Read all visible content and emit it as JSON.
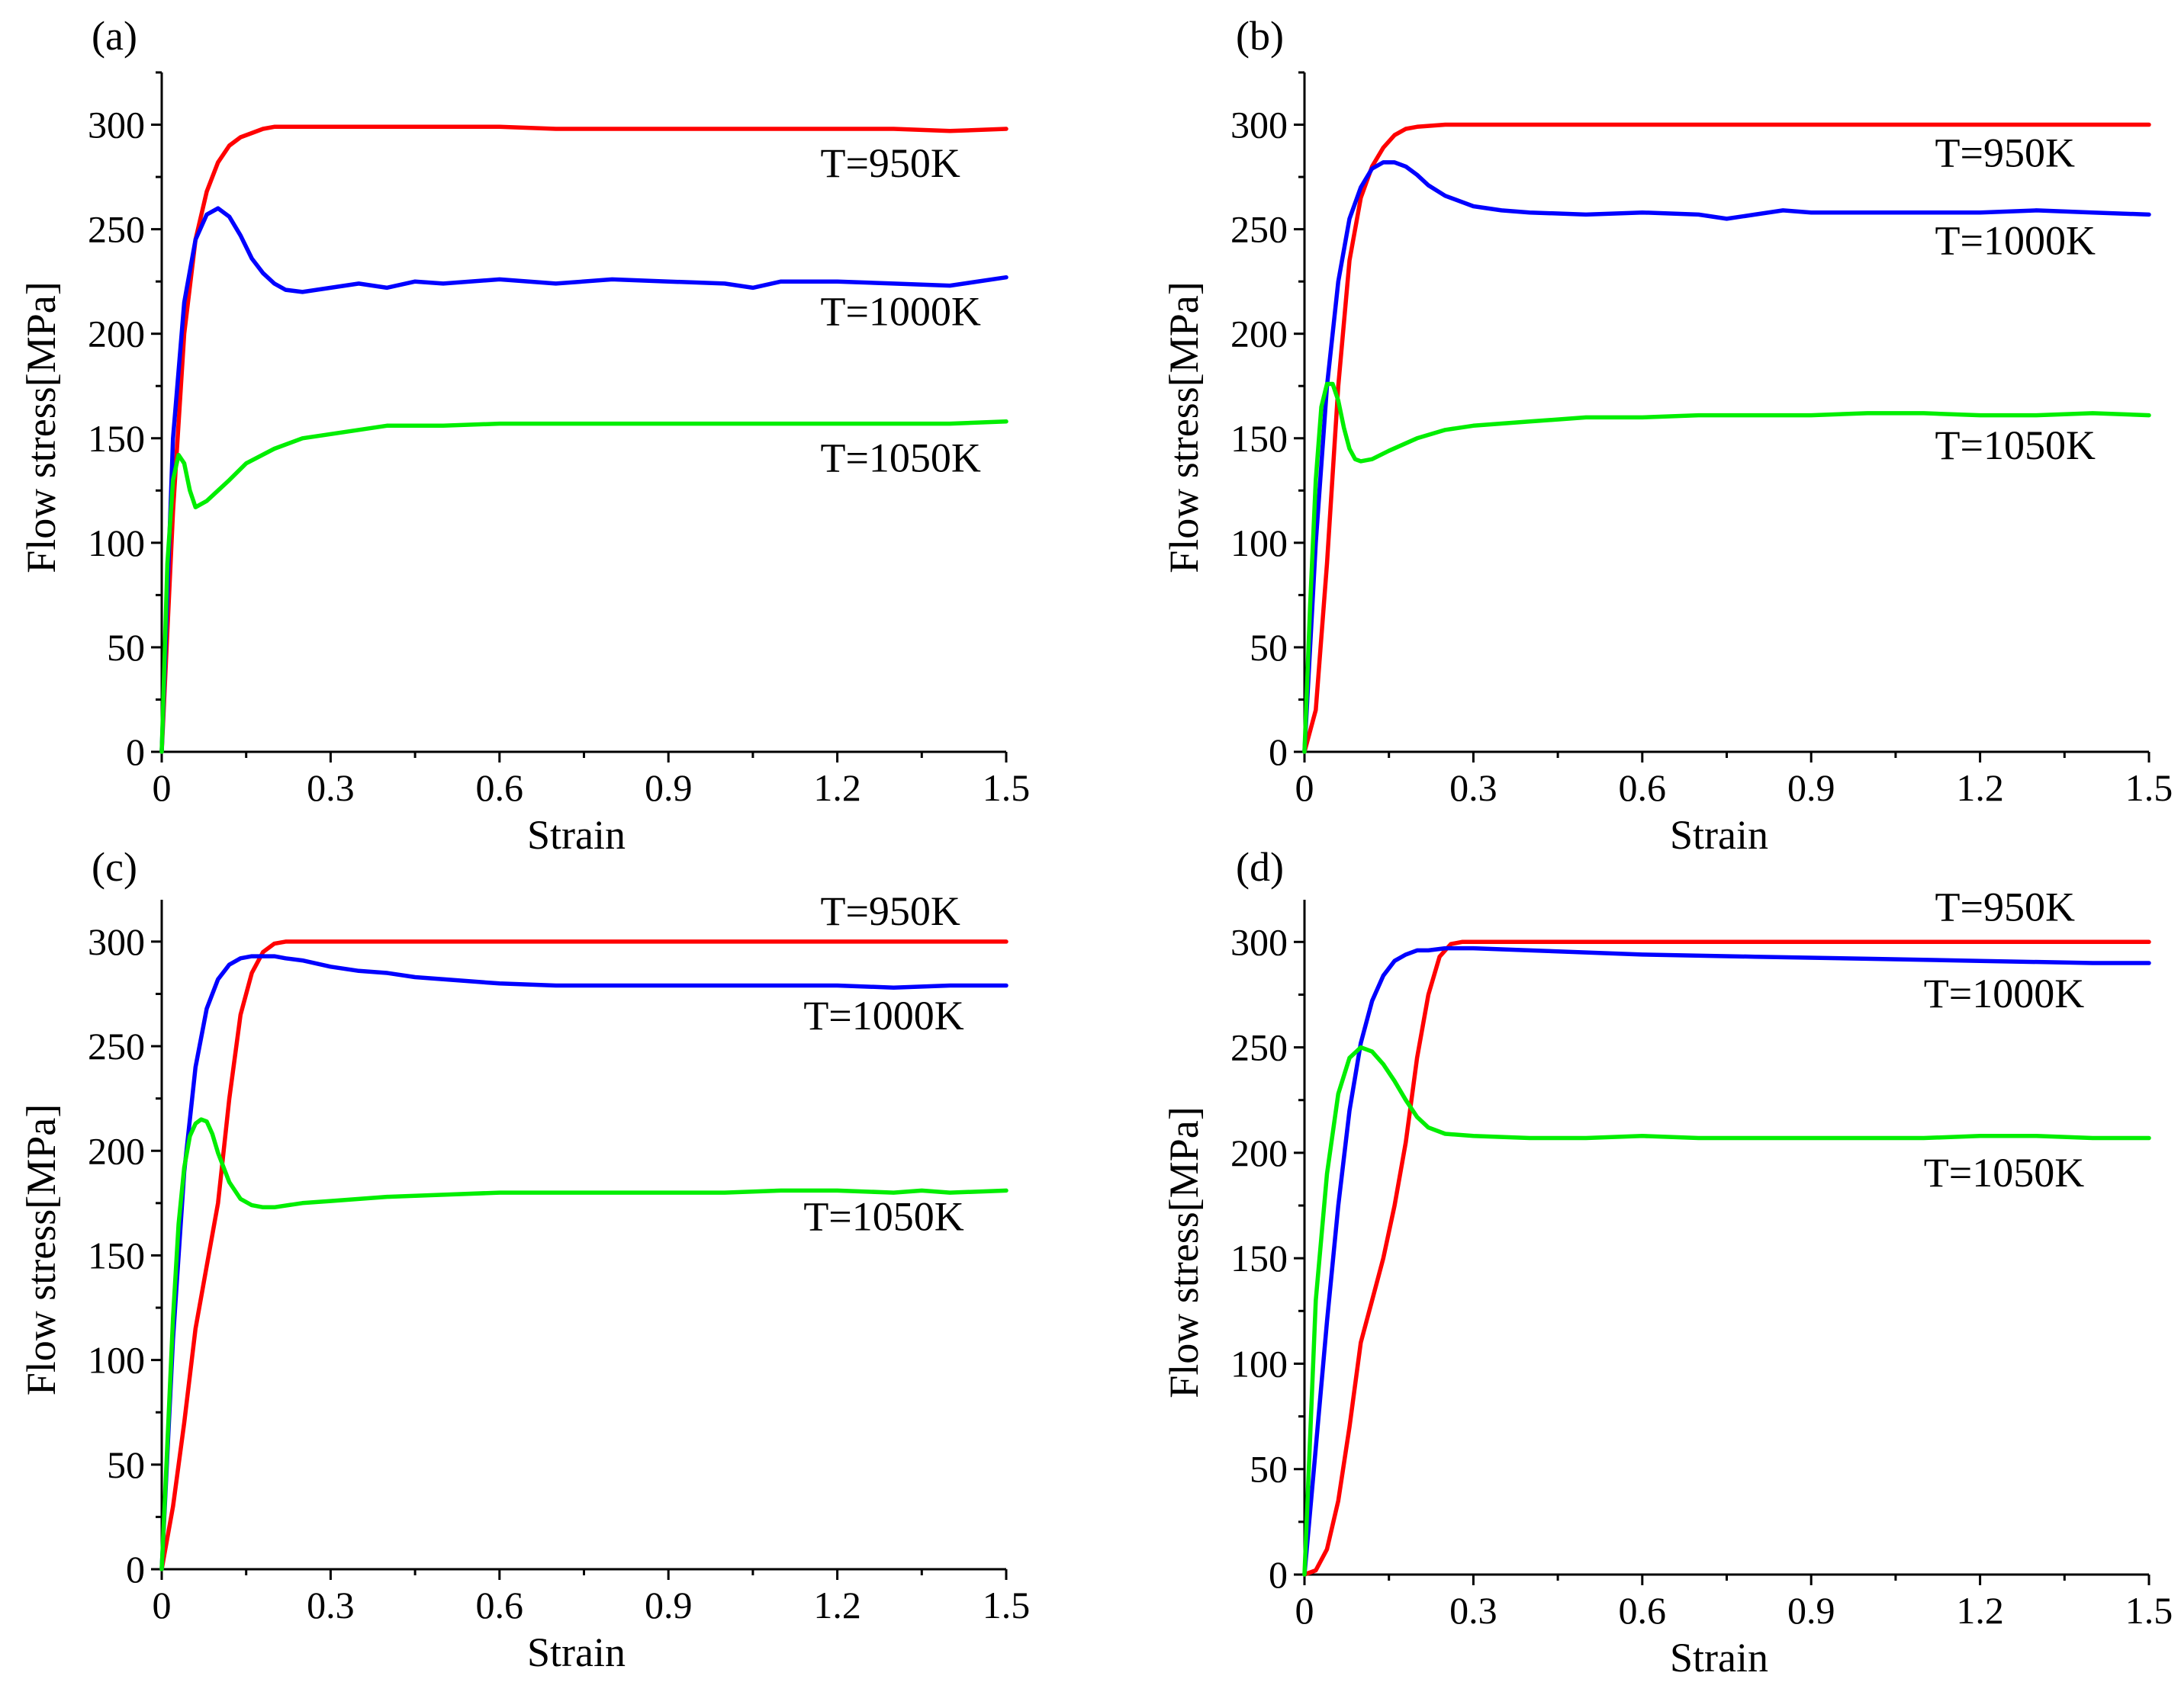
{
  "colors": {
    "T950": "#ff0000",
    "T1000": "#0000ff",
    "T1050": "#00ee00"
  },
  "chart_data": [
    {
      "type": "line",
      "panel": "(a)",
      "xlabel": "Strain",
      "ylabel": "Flow stress[MPa]",
      "xlim": [
        0,
        1.5
      ],
      "ylim": [
        0,
        325
      ],
      "xticks": [
        0,
        0.3,
        0.6,
        0.9,
        1.2,
        1.5
      ],
      "xtick_labels": [
        "0",
        "0.3",
        "0.6",
        "0.9",
        "1.2",
        "1.5"
      ],
      "yticks": [
        0,
        50,
        100,
        150,
        200,
        250,
        300
      ],
      "ytick_labels": [
        "0",
        "50",
        "100",
        "150",
        "200",
        "250",
        "300"
      ],
      "series": [
        {
          "name": "T=950K",
          "color": "#ff0000",
          "x": [
            0,
            0.02,
            0.04,
            0.06,
            0.08,
            0.1,
            0.12,
            0.14,
            0.16,
            0.18,
            0.2,
            0.25,
            0.3,
            0.4,
            0.5,
            0.6,
            0.7,
            0.8,
            0.9,
            1.0,
            1.1,
            1.2,
            1.3,
            1.4,
            1.5
          ],
          "y": [
            0,
            115,
            200,
            245,
            268,
            282,
            290,
            294,
            296,
            298,
            299,
            299,
            299,
            299,
            299,
            299,
            298,
            298,
            298,
            298,
            298,
            298,
            298,
            297,
            298
          ]
        },
        {
          "name": "T=1000K",
          "color": "#0000ff",
          "x": [
            0,
            0.02,
            0.04,
            0.06,
            0.08,
            0.1,
            0.12,
            0.14,
            0.16,
            0.18,
            0.2,
            0.22,
            0.25,
            0.3,
            0.35,
            0.4,
            0.45,
            0.5,
            0.6,
            0.7,
            0.8,
            0.9,
            1.0,
            1.05,
            1.1,
            1.2,
            1.3,
            1.4,
            1.5
          ],
          "y": [
            0,
            150,
            215,
            245,
            257,
            260,
            256,
            247,
            236,
            229,
            224,
            221,
            220,
            222,
            224,
            222,
            225,
            224,
            226,
            224,
            226,
            225,
            224,
            222,
            225,
            225,
            224,
            223,
            227
          ]
        },
        {
          "name": "T=1050K",
          "color": "#00ee00",
          "x": [
            0,
            0.01,
            0.02,
            0.03,
            0.04,
            0.05,
            0.06,
            0.08,
            0.1,
            0.12,
            0.15,
            0.2,
            0.25,
            0.3,
            0.35,
            0.4,
            0.5,
            0.6,
            0.7,
            0.8,
            0.9,
            1.0,
            1.1,
            1.2,
            1.3,
            1.4,
            1.5
          ],
          "y": [
            0,
            90,
            130,
            142,
            138,
            125,
            117,
            120,
            125,
            130,
            138,
            145,
            150,
            152,
            154,
            156,
            156,
            157,
            157,
            157,
            157,
            157,
            157,
            157,
            157,
            157,
            158
          ]
        }
      ],
      "annotations": [
        {
          "text": "T=950K",
          "x": 1.17,
          "y": 275
        },
        {
          "text": "T=1000K",
          "x": 1.17,
          "y": 204
        },
        {
          "text": "T=1050K",
          "x": 1.17,
          "y": 134
        }
      ]
    },
    {
      "type": "line",
      "panel": "(b)",
      "xlabel": "Strain",
      "ylabel": "Flow stress[MPa]",
      "xlim": [
        0,
        1.5
      ],
      "ylim": [
        0,
        325
      ],
      "xticks": [
        0,
        0.3,
        0.6,
        0.9,
        1.2,
        1.5
      ],
      "xtick_labels": [
        "0",
        "0.3",
        "0.6",
        "0.9",
        "1.2",
        "1.5"
      ],
      "yticks": [
        0,
        50,
        100,
        150,
        200,
        250,
        300
      ],
      "ytick_labels": [
        "0",
        "50",
        "100",
        "150",
        "200",
        "250",
        "300"
      ],
      "series": [
        {
          "name": "T=950K",
          "color": "#ff0000",
          "x": [
            0,
            0.02,
            0.04,
            0.06,
            0.08,
            0.1,
            0.12,
            0.14,
            0.16,
            0.18,
            0.2,
            0.25,
            0.3,
            0.4,
            0.5,
            0.6,
            0.8,
            1.0,
            1.2,
            1.4,
            1.5
          ],
          "y": [
            0,
            20,
            90,
            175,
            235,
            265,
            280,
            289,
            295,
            298,
            299,
            300,
            300,
            300,
            300,
            300,
            300,
            300,
            300,
            300,
            300
          ]
        },
        {
          "name": "T=1000K",
          "color": "#0000ff",
          "x": [
            0,
            0.02,
            0.04,
            0.06,
            0.08,
            0.1,
            0.12,
            0.14,
            0.16,
            0.18,
            0.2,
            0.22,
            0.25,
            0.3,
            0.35,
            0.4,
            0.5,
            0.6,
            0.7,
            0.75,
            0.8,
            0.85,
            0.9,
            1.0,
            1.1,
            1.2,
            1.3,
            1.4,
            1.5
          ],
          "y": [
            0,
            100,
            175,
            225,
            255,
            270,
            279,
            282,
            282,
            280,
            276,
            271,
            266,
            261,
            259,
            258,
            257,
            258,
            257,
            255,
            257,
            259,
            258,
            258,
            258,
            258,
            259,
            258,
            257
          ]
        },
        {
          "name": "T=1050K",
          "color": "#00ee00",
          "x": [
            0,
            0.01,
            0.02,
            0.03,
            0.04,
            0.05,
            0.06,
            0.07,
            0.08,
            0.09,
            0.1,
            0.12,
            0.15,
            0.2,
            0.25,
            0.3,
            0.4,
            0.5,
            0.6,
            0.7,
            0.8,
            0.9,
            1.0,
            1.1,
            1.2,
            1.3,
            1.4,
            1.5
          ],
          "y": [
            0,
            70,
            130,
            165,
            176,
            176,
            168,
            155,
            145,
            140,
            139,
            140,
            144,
            150,
            154,
            156,
            158,
            160,
            160,
            161,
            161,
            161,
            162,
            162,
            161,
            161,
            162,
            161
          ]
        }
      ],
      "annotations": [
        {
          "text": "T=950K",
          "x": 1.12,
          "y": 280
        },
        {
          "text": "T=1000K",
          "x": 1.12,
          "y": 238
        },
        {
          "text": "T=1050K",
          "x": 1.12,
          "y": 140
        }
      ]
    },
    {
      "type": "line",
      "panel": "(c)",
      "xlabel": "Strain",
      "ylabel": "Flow stress[MPa]",
      "xlim": [
        0,
        1.5
      ],
      "ylim": [
        0,
        320
      ],
      "xticks": [
        0,
        0.3,
        0.6,
        0.9,
        1.2,
        1.5
      ],
      "xtick_labels": [
        "0",
        "0.3",
        "0.6",
        "0.9",
        "1.2",
        "1.5"
      ],
      "yticks": [
        0,
        50,
        100,
        150,
        200,
        250,
        300
      ],
      "ytick_labels": [
        "0",
        "50",
        "100",
        "150",
        "200",
        "250",
        "300"
      ],
      "series": [
        {
          "name": "T=950K",
          "color": "#ff0000",
          "x": [
            0,
            0.02,
            0.04,
            0.06,
            0.08,
            0.1,
            0.12,
            0.14,
            0.16,
            0.18,
            0.2,
            0.22,
            0.25,
            0.3,
            0.4,
            0.6,
            0.8,
            1.0,
            1.2,
            1.4,
            1.5
          ],
          "y": [
            0,
            30,
            70,
            115,
            145,
            175,
            225,
            265,
            285,
            295,
            299,
            300,
            300,
            300,
            300,
            300,
            300,
            300,
            300,
            300,
            300
          ]
        },
        {
          "name": "T=1000K",
          "color": "#0000ff",
          "x": [
            0,
            0.02,
            0.04,
            0.06,
            0.08,
            0.1,
            0.12,
            0.14,
            0.16,
            0.18,
            0.2,
            0.22,
            0.25,
            0.3,
            0.35,
            0.4,
            0.45,
            0.5,
            0.6,
            0.7,
            0.8,
            0.9,
            1.0,
            1.1,
            1.2,
            1.3,
            1.4,
            1.5
          ],
          "y": [
            0,
            110,
            190,
            240,
            268,
            282,
            289,
            292,
            293,
            293,
            293,
            292,
            291,
            288,
            286,
            285,
            283,
            282,
            280,
            279,
            279,
            279,
            279,
            279,
            279,
            278,
            279,
            279
          ]
        },
        {
          "name": "T=1050K",
          "color": "#00ee00",
          "x": [
            0,
            0.01,
            0.02,
            0.03,
            0.04,
            0.05,
            0.06,
            0.07,
            0.08,
            0.09,
            0.1,
            0.12,
            0.14,
            0.16,
            0.18,
            0.2,
            0.25,
            0.3,
            0.4,
            0.5,
            0.6,
            0.7,
            0.8,
            0.9,
            1.0,
            1.1,
            1.2,
            1.3,
            1.35,
            1.4,
            1.5
          ],
          "y": [
            0,
            60,
            120,
            165,
            192,
            207,
            213,
            215,
            214,
            208,
            199,
            185,
            177,
            174,
            173,
            173,
            175,
            176,
            178,
            179,
            180,
            180,
            180,
            180,
            180,
            181,
            181,
            180,
            181,
            180,
            181
          ]
        }
      ],
      "annotations": [
        {
          "text": "T=950K",
          "x": 1.17,
          "y": 308
        },
        {
          "text": "T=1000K",
          "x": 1.14,
          "y": 258
        },
        {
          "text": "T=1050K",
          "x": 1.14,
          "y": 162
        }
      ]
    },
    {
      "type": "line",
      "panel": "(d)",
      "xlabel": "Strain",
      "ylabel": "Flow stress[MPa]",
      "xlim": [
        0,
        1.5
      ],
      "ylim": [
        0,
        320
      ],
      "xticks": [
        0,
        0.3,
        0.6,
        0.9,
        1.2,
        1.5
      ],
      "xtick_labels": [
        "0",
        "0.3",
        "0.6",
        "0.9",
        "1.2",
        "1.5"
      ],
      "yticks": [
        0,
        50,
        100,
        150,
        200,
        250,
        300
      ],
      "ytick_labels": [
        "0",
        "50",
        "100",
        "150",
        "200",
        "250",
        "300"
      ],
      "series": [
        {
          "name": "T=950K",
          "color": "#ff0000",
          "x": [
            0,
            0.02,
            0.04,
            0.06,
            0.08,
            0.1,
            0.12,
            0.14,
            0.16,
            0.18,
            0.2,
            0.22,
            0.24,
            0.26,
            0.28,
            0.3,
            0.4,
            0.6,
            0.8,
            1.0,
            1.2,
            1.4,
            1.5
          ],
          "y": [
            0,
            2,
            12,
            35,
            70,
            110,
            130,
            150,
            175,
            205,
            245,
            275,
            293,
            299,
            300,
            300,
            300,
            300,
            300,
            300,
            300,
            300,
            300
          ]
        },
        {
          "name": "T=1000K",
          "color": "#0000ff",
          "x": [
            0,
            0.02,
            0.04,
            0.06,
            0.08,
            0.1,
            0.12,
            0.14,
            0.16,
            0.18,
            0.2,
            0.22,
            0.25,
            0.3,
            0.4,
            0.5,
            0.6,
            0.8,
            1.0,
            1.2,
            1.4,
            1.5
          ],
          "y": [
            0,
            60,
            120,
            175,
            220,
            252,
            272,
            284,
            291,
            294,
            296,
            296,
            297,
            297,
            296,
            295,
            294,
            293,
            292,
            291,
            290,
            290
          ]
        },
        {
          "name": "T=1050K",
          "color": "#00ee00",
          "x": [
            0,
            0.02,
            0.04,
            0.06,
            0.08,
            0.1,
            0.12,
            0.14,
            0.16,
            0.18,
            0.2,
            0.22,
            0.25,
            0.3,
            0.4,
            0.5,
            0.6,
            0.7,
            0.8,
            0.9,
            1.0,
            1.1,
            1.2,
            1.3,
            1.4,
            1.5
          ],
          "y": [
            0,
            130,
            190,
            228,
            245,
            250,
            248,
            242,
            234,
            225,
            217,
            212,
            209,
            208,
            207,
            207,
            208,
            207,
            207,
            207,
            207,
            207,
            208,
            208,
            207,
            207
          ]
        }
      ],
      "annotations": [
        {
          "text": "T=950K",
          "x": 1.12,
          "y": 310
        },
        {
          "text": "T=1000K",
          "x": 1.1,
          "y": 269
        },
        {
          "text": "T=1050K",
          "x": 1.1,
          "y": 184
        }
      ]
    }
  ]
}
